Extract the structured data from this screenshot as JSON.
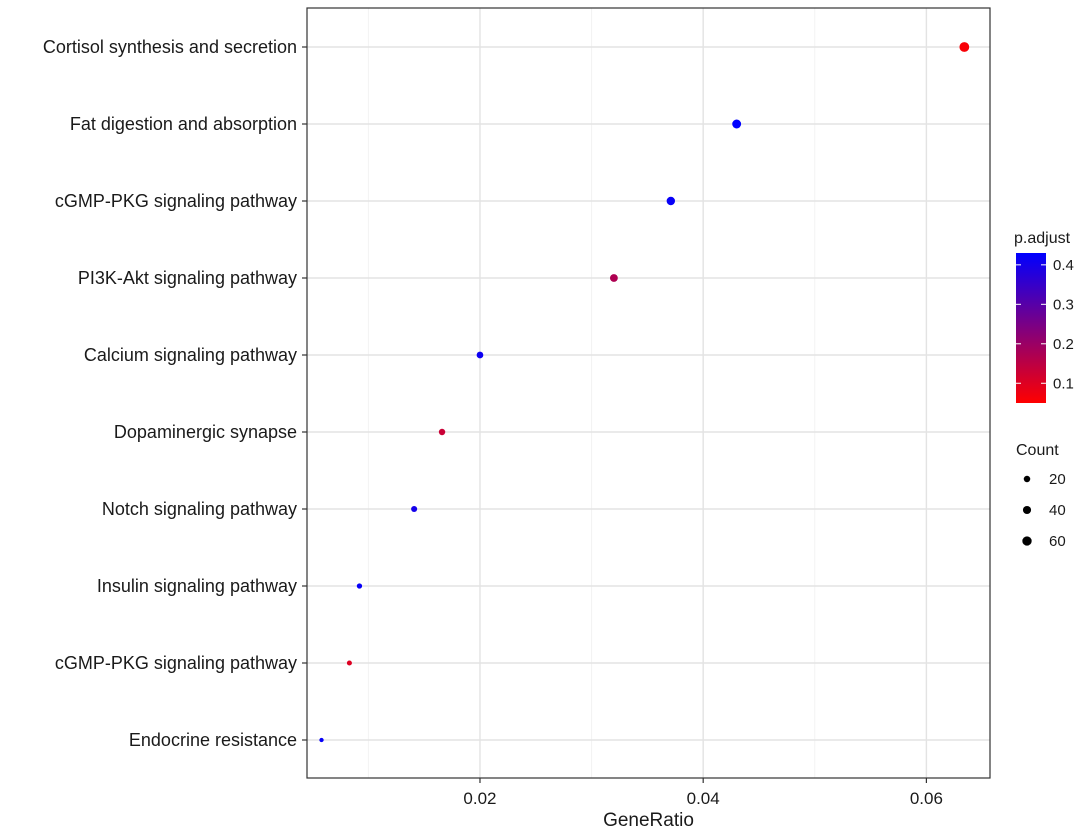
{
  "chart_data": {
    "type": "scatter",
    "title": "",
    "xlabel": "GeneRatio",
    "ylabel": "",
    "xlim": [
      0.0045,
      0.0657
    ],
    "x_ticks": [
      0.02,
      0.04,
      0.06
    ],
    "x_tick_labels": [
      "0.02",
      "0.04",
      "0.06"
    ],
    "grid": true,
    "categories": [
      "Cortisol synthesis and secretion",
      "Fat digestion and absorption",
      "cGMP-PKG signaling pathway",
      "PI3K-Akt signaling pathway",
      "Calcium signaling pathway",
      "Dopaminergic synapse",
      "Notch signaling pathway",
      "Insulin signaling pathway",
      "cGMP-PKG signaling pathway",
      "Endocrine resistance"
    ],
    "points": [
      {
        "category": "Cortisol synthesis and secretion",
        "x": 0.0634,
        "count": 68,
        "p_adjust": 0.06
      },
      {
        "category": "Fat digestion and absorption",
        "x": 0.043,
        "count": 52,
        "p_adjust": 0.43
      },
      {
        "category": "cGMP-PKG signaling pathway",
        "x": 0.0371,
        "count": 44,
        "p_adjust": 0.42
      },
      {
        "category": "PI3K-Akt signaling pathway",
        "x": 0.032,
        "count": 36,
        "p_adjust": 0.17
      },
      {
        "category": "Calcium signaling pathway",
        "x": 0.02,
        "count": 22,
        "p_adjust": 0.41
      },
      {
        "category": "Dopaminergic synapse",
        "x": 0.0166,
        "count": 19,
        "p_adjust": 0.13
      },
      {
        "category": "Notch signaling pathway",
        "x": 0.0141,
        "count": 16,
        "p_adjust": 0.4
      },
      {
        "category": "Insulin signaling pathway",
        "x": 0.0092,
        "count": 10,
        "p_adjust": 0.42
      },
      {
        "category": "cGMP-PKG signaling pathway",
        "x": 0.0083,
        "count": 8,
        "p_adjust": 0.1
      },
      {
        "category": "Endocrine resistance",
        "x": 0.0058,
        "count": 4,
        "p_adjust": 0.42
      }
    ],
    "color_legend": {
      "title": "p.adjust",
      "range": [
        0.05,
        0.43
      ],
      "ticks": [
        0.1,
        0.2,
        0.3,
        0.4
      ],
      "tick_labels": [
        "0.1",
        "0.2",
        "0.3",
        "0.4"
      ],
      "low_color": "#ff0000",
      "high_color": "#0000ff"
    },
    "size_legend": {
      "title": "Count",
      "values": [
        20,
        40,
        60
      ],
      "labels": [
        "20",
        "40",
        "60"
      ]
    },
    "legend_position": "right"
  }
}
